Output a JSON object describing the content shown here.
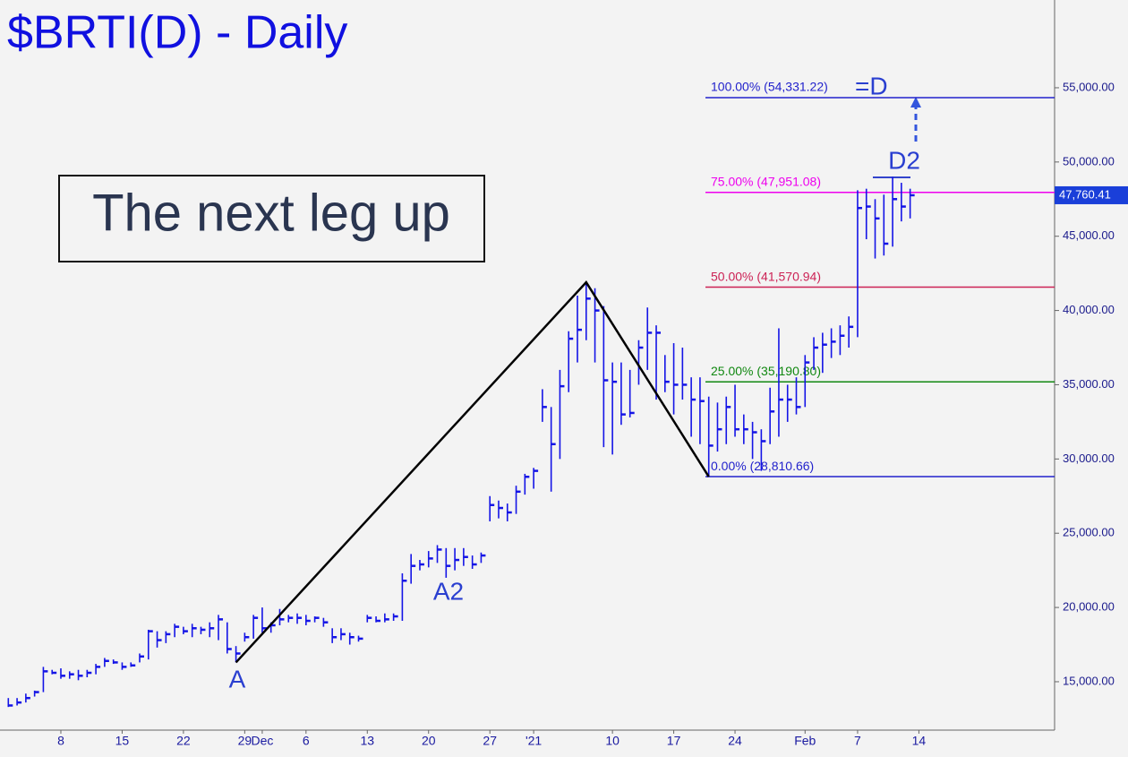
{
  "chart_data": {
    "type": "hlc",
    "title": "$BRTI(D) - Daily",
    "callout": "The next leg up",
    "color": "#1414e6",
    "categories": [
      null,
      null,
      null,
      null,
      null,
      null,
      "8",
      null,
      null,
      null,
      null,
      null,
      null,
      "15",
      null,
      null,
      null,
      null,
      null,
      null,
      "22",
      null,
      null,
      null,
      null,
      null,
      null,
      "29",
      null,
      "Dec",
      null,
      null,
      null,
      null,
      "6",
      null,
      null,
      null,
      null,
      null,
      null,
      "13",
      null,
      null,
      null,
      null,
      null,
      null,
      "20",
      null,
      null,
      null,
      null,
      null,
      null,
      "27",
      null,
      null,
      null,
      null,
      "'21",
      null,
      null,
      null,
      null,
      null,
      null,
      null,
      null,
      "10",
      null,
      null,
      null,
      null,
      null,
      null,
      "17",
      null,
      null,
      null,
      null,
      null,
      null,
      "24",
      null,
      null,
      null,
      null,
      null,
      null,
      null,
      "Feb",
      null,
      null,
      null,
      null,
      null,
      "7",
      null,
      null,
      null,
      null,
      null,
      null,
      "14"
    ],
    "high": [
      13900,
      13900,
      14200,
      14400,
      16000,
      15800,
      15900,
      15700,
      15800,
      15800,
      16200,
      16600,
      16500,
      16300,
      16300,
      16900,
      18500,
      18400,
      18400,
      18900,
      18700,
      18900,
      18700,
      19000,
      19500,
      19000,
      17400,
      18300,
      19500,
      20000,
      19000,
      19900,
      19500,
      19600,
      19500,
      19400,
      19300,
      18600,
      18600,
      18300,
      18100,
      19500,
      19400,
      19600,
      19600,
      22300,
      23600,
      23200,
      23800,
      24200,
      24000,
      24000,
      24000,
      23500,
      23700,
      27500,
      27200,
      27000,
      28200,
      29000,
      29400,
      34700,
      33500,
      36000,
      38600,
      41000,
      41900,
      41500,
      40300,
      36500,
      36500,
      36000,
      38000,
      40200,
      39000,
      37000,
      37800,
      37500,
      35500,
      35500,
      34200,
      33800,
      34200,
      35000,
      33000,
      32500,
      32000,
      34800,
      38800,
      35000,
      35500,
      37000,
      38200,
      38500,
      38800,
      39000,
      39600,
      48100,
      48200,
      47500,
      47800,
      49000,
      48600,
      48200,
      null
    ],
    "low": [
      13300,
      13400,
      13600,
      14000,
      14300,
      15500,
      15200,
      15200,
      15100,
      15300,
      15500,
      16000,
      16200,
      15800,
      16000,
      16300,
      16500,
      17300,
      17600,
      18000,
      18200,
      18000,
      18200,
      18000,
      17800,
      16900,
      16300,
      17700,
      17900,
      18300,
      18300,
      18800,
      19000,
      18900,
      18800,
      19000,
      18700,
      17600,
      17800,
      17500,
      17700,
      19000,
      19000,
      19000,
      19100,
      19100,
      21600,
      22500,
      22700,
      23000,
      22000,
      22500,
      22800,
      22600,
      23000,
      25800,
      26000,
      25800,
      26300,
      27600,
      28000,
      32500,
      27800,
      30000,
      34500,
      36500,
      38000,
      36500,
      30800,
      30300,
      32300,
      32800,
      35000,
      36000,
      34000,
      34500,
      33000,
      34000,
      31500,
      31000,
      28800,
      30500,
      31000,
      31500,
      31000,
      30000,
      29200,
      31000,
      31500,
      32500,
      33000,
      33500,
      36000,
      35800,
      36800,
      37000,
      37500,
      38200,
      44800,
      43500,
      43700,
      44300,
      46000,
      46200,
      null
    ],
    "close": [
      13400,
      13600,
      13900,
      14300,
      15700,
      15600,
      15400,
      15500,
      15400,
      15600,
      16000,
      16400,
      16300,
      16000,
      16100,
      16700,
      18400,
      17800,
      18200,
      18700,
      18400,
      18600,
      18500,
      18600,
      19200,
      17200,
      16900,
      18000,
      19300,
      18600,
      18800,
      19200,
      19300,
      19300,
      19100,
      19300,
      19000,
      18000,
      18200,
      18000,
      17900,
      19300,
      19100,
      19200,
      19400,
      21800,
      22800,
      22900,
      23300,
      23900,
      22800,
      23200,
      23400,
      22900,
      23500,
      26900,
      26700,
      26400,
      27800,
      28800,
      29200,
      33500,
      31000,
      34900,
      38100,
      38700,
      40800,
      40000,
      35300,
      35200,
      33000,
      33100,
      37500,
      38500,
      38500,
      35200,
      35000,
      35000,
      34000,
      33900,
      30900,
      32000,
      33500,
      32000,
      32000,
      31800,
      31200,
      33200,
      34000,
      34000,
      33500,
      36500,
      37500,
      37700,
      37900,
      38300,
      38900,
      46900,
      47000,
      46200,
      44500,
      47500,
      47000,
      47760.41,
      null
    ],
    "ylim": [
      11740,
      60910
    ],
    "yticks": [
      {
        "value": 15000,
        "label": "15,000.00"
      },
      {
        "value": 20000,
        "label": "20,000.00"
      },
      {
        "value": 25000,
        "label": "25,000.00"
      },
      {
        "value": 30000,
        "label": "30,000.00"
      },
      {
        "value": 35000,
        "label": "35,000.00"
      },
      {
        "value": 40000,
        "label": "40,000.00"
      },
      {
        "value": 45000,
        "label": "45,000.00"
      },
      {
        "value": 50000,
        "label": "50,000.00"
      },
      {
        "value": 55000,
        "label": "55,000.00"
      }
    ],
    "last_price": {
      "value": 47760.41,
      "label": "47,760.41"
    },
    "fib_levels": [
      {
        "value": 54331.22,
        "label": "100.00% (54,331.22)",
        "color": "#2222cc"
      },
      {
        "value": 47951.08,
        "label": "75.00% (47,951.08)",
        "color": "#ee00ee"
      },
      {
        "value": 41570.94,
        "label": "50.00% (41,570.94)",
        "color": "#cc2255"
      },
      {
        "value": 35190.8,
        "label": "25.00% (35,190.80)",
        "color": "#118811"
      },
      {
        "value": 28810.66,
        "label": "0.00% (28,810.66)",
        "color": "#2222cc"
      }
    ],
    "pivots": {
      "index": [
        26,
        66,
        80
      ],
      "values": [
        16300,
        41900,
        28810.66
      ],
      "color": "#000000"
    },
    "annotations": [
      "A",
      "A2",
      "D2",
      "=D"
    ]
  }
}
